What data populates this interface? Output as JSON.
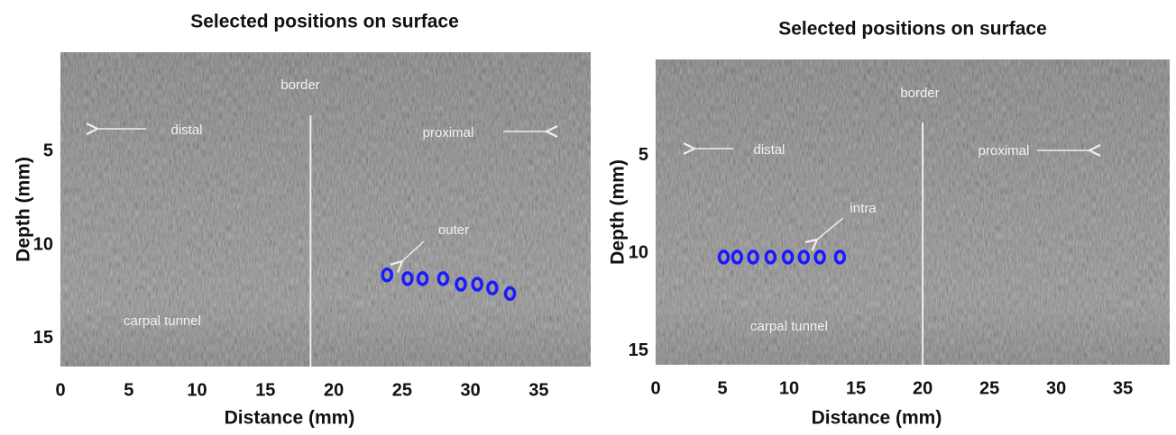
{
  "chart_data": [
    {
      "type": "scatter",
      "title": "Selected positions on surface",
      "xlabel": "Distance (mm)",
      "ylabel": "Depth (mm)",
      "x": [
        23.9,
        25.4,
        26.5,
        28.0,
        29.3,
        30.5,
        31.6,
        32.9
      ],
      "values": [
        11.6,
        11.8,
        11.8,
        11.8,
        12.1,
        12.1,
        12.3,
        12.6
      ],
      "color": "#1a1aff",
      "xlim": [
        0,
        38.8
      ],
      "ylim": [
        16.5,
        -0.3
      ],
      "xticks": [
        0,
        5,
        10,
        15,
        20,
        25,
        30,
        35
      ],
      "yticks": [
        5,
        10,
        15
      ],
      "vline": 18.3,
      "annotations": [
        "border",
        "distal",
        "proximal",
        "outer",
        "carpal tunnel"
      ]
    },
    {
      "type": "scatter",
      "title": "Selected positions on surface",
      "xlabel": "Distance (mm)",
      "ylabel": "Depth (mm)",
      "x": [
        5.1,
        6.1,
        7.3,
        8.6,
        9.9,
        11.1,
        12.3,
        13.8
      ],
      "values": [
        10.2,
        10.2,
        10.2,
        10.2,
        10.2,
        10.2,
        10.2,
        10.2
      ],
      "color": "#1a1aff",
      "xlim": [
        0,
        38.5
      ],
      "ylim": [
        15.7,
        0.1
      ],
      "xticks": [
        0,
        5,
        10,
        15,
        20,
        25,
        30,
        35
      ],
      "yticks": [
        5,
        10,
        15
      ],
      "vline": 20.0,
      "annotations": [
        "border",
        "distal",
        "proximal",
        "intra",
        "carpal tunnel"
      ]
    }
  ]
}
